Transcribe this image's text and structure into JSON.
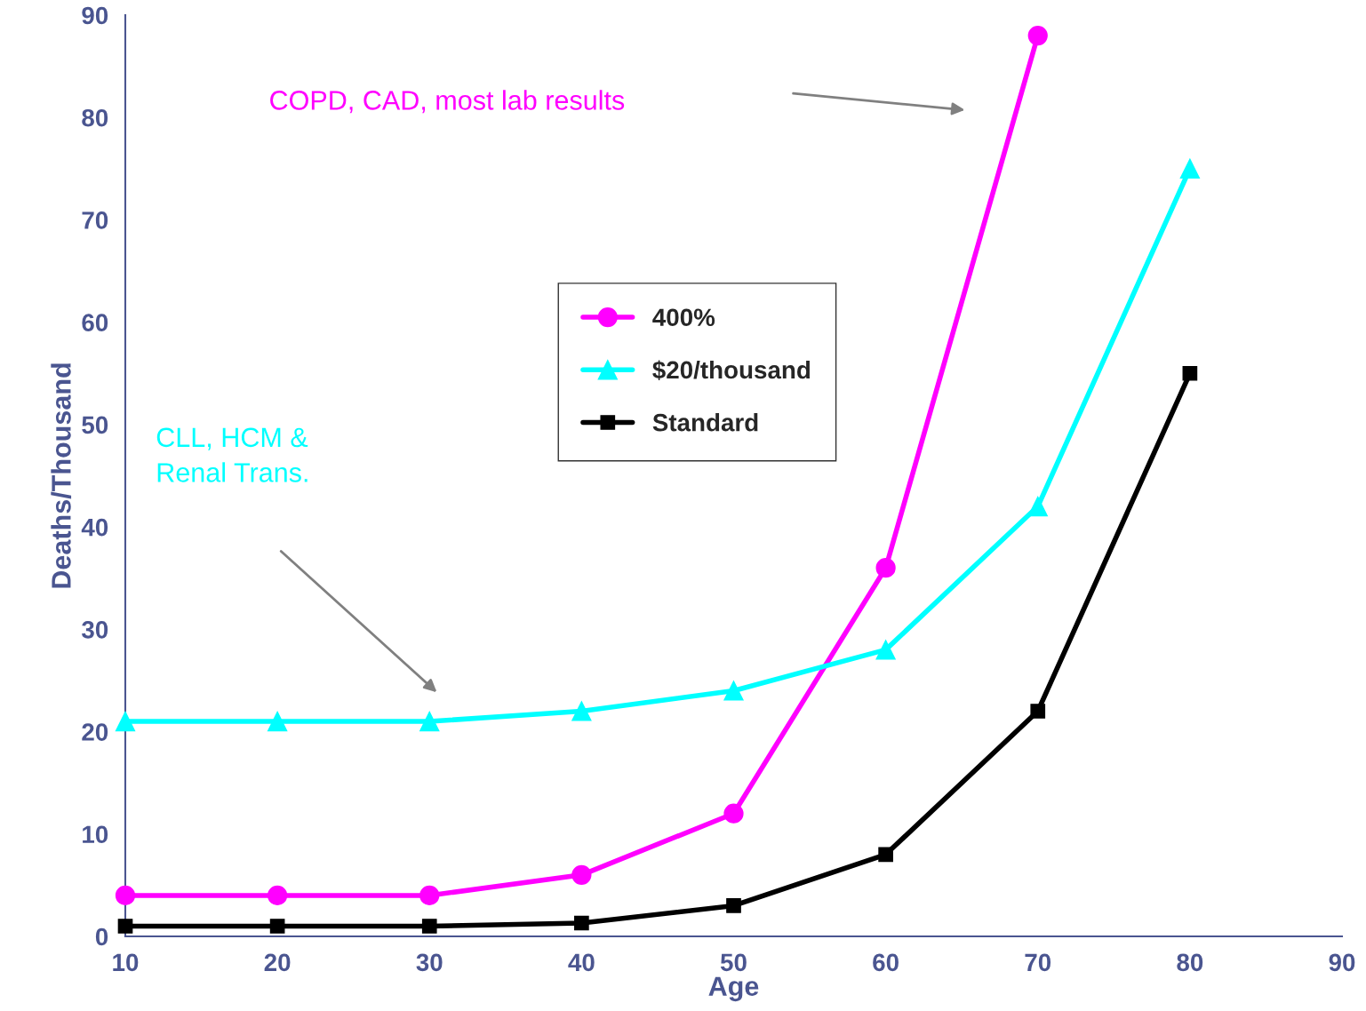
{
  "chart_data": {
    "type": "line",
    "xlabel": "Age",
    "ylabel": "Deaths/Thousand",
    "x": [
      10,
      20,
      30,
      40,
      50,
      60,
      70,
      80
    ],
    "series": [
      {
        "name": "400%",
        "color": "#ff00ff",
        "marker": "circle",
        "values": [
          4,
          4,
          4,
          6,
          12,
          36,
          88,
          null
        ]
      },
      {
        "name": "$20/thousand",
        "color": "#00ffff",
        "marker": "triangle",
        "values": [
          21,
          21,
          21,
          22,
          24,
          28,
          42,
          75
        ]
      },
      {
        "name": "Standard",
        "color": "#000000",
        "marker": "square",
        "values": [
          1,
          1,
          1,
          1.3,
          3,
          8,
          22,
          55
        ]
      }
    ],
    "xlim": [
      10,
      90
    ],
    "ylim": [
      0,
      90
    ],
    "xticks": [
      10,
      20,
      30,
      40,
      50,
      60,
      70,
      80,
      90
    ],
    "yticks": [
      0,
      10,
      20,
      30,
      40,
      50,
      60,
      70,
      80,
      90
    ],
    "grid": false,
    "legend": "center",
    "line_style": "solid",
    "annotations": [
      "COPD, CAD, most lab results",
      "CLL, HCM &\nRenal Trans."
    ]
  }
}
